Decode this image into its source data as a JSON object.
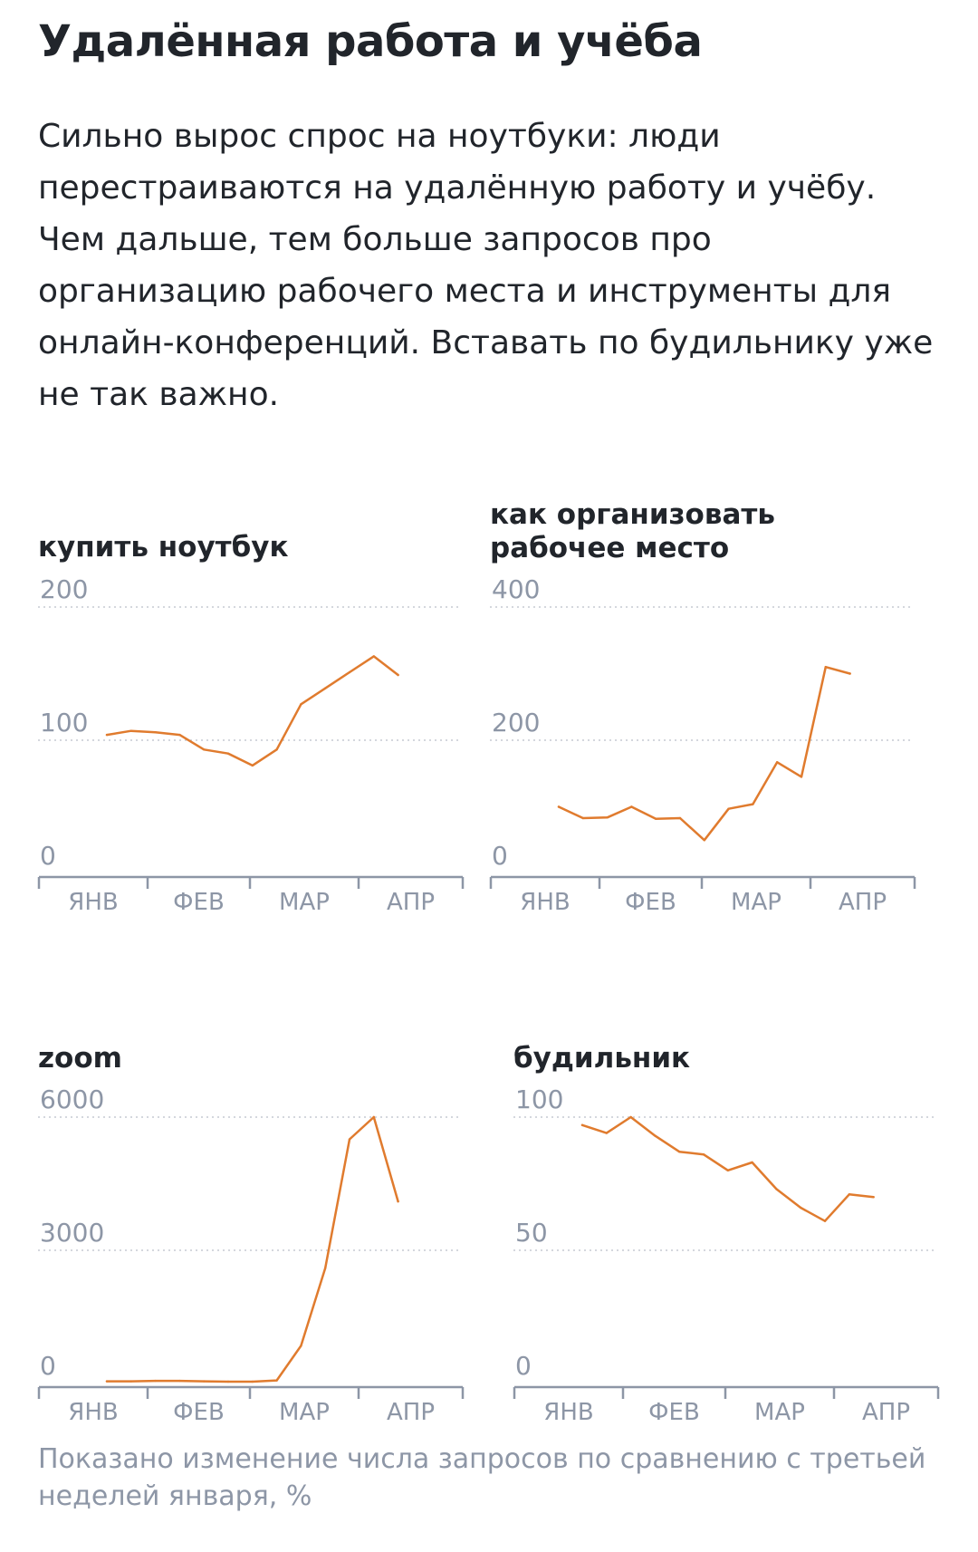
{
  "header": {
    "title": "Удалённая работа и учёба",
    "lead": "Сильно вырос спрос на ноутбуки: люди перестраиваются на удалённую работу и учёбу. Чем дальше, тем больше запросов про организацию рабочего места и инструменты для онлайн-конференций. Вставать по будильнику уже не так важно."
  },
  "footnote": "Показано изменение числа запросов по сравнению с третьей неделей января, %",
  "colors": {
    "line": "#e07b2e",
    "grid": "#c6cad2",
    "tick_text": "#8d96a6",
    "axis": "#8d96a6",
    "text": "#21252b"
  },
  "chart_data": [
    {
      "type": "line",
      "title": "купить ноутбук",
      "ylim": [
        0,
        200
      ],
      "yticks": [
        "0",
        "100",
        "200"
      ],
      "xticks": [
        "ЯНВ",
        "ФЕВ",
        "МАР",
        "АПР"
      ],
      "grid": true,
      "values": [
        104,
        107,
        106,
        104,
        93,
        90,
        81,
        93,
        127,
        139,
        151,
        163,
        149
      ]
    },
    {
      "type": "line",
      "title": "как организовать рабочее место",
      "ylim": [
        0,
        400
      ],
      "yticks": [
        "0",
        "200",
        "400"
      ],
      "xticks": [
        "ЯНВ",
        "ФЕВ",
        "МАР",
        "АПР"
      ],
      "grid": true,
      "values": [
        100,
        83,
        84,
        100,
        82,
        83,
        50,
        97,
        104,
        167,
        145,
        310,
        300
      ]
    },
    {
      "type": "line",
      "title": "zoom",
      "ylim": [
        0,
        6000
      ],
      "yticks": [
        "0",
        "3000",
        "6000"
      ],
      "xticks": [
        "ЯНВ",
        "ФЕВ",
        "МАР",
        "АПР"
      ],
      "grid": true,
      "values": [
        50,
        50,
        60,
        60,
        50,
        40,
        40,
        70,
        850,
        2600,
        5500,
        6000,
        4100
      ]
    },
    {
      "type": "line",
      "title": "будильник",
      "ylim": [
        0,
        100
      ],
      "yticks": [
        "0",
        "50",
        "100"
      ],
      "xticks": [
        "ЯНВ",
        "ФЕВ",
        "МАР",
        "АПР"
      ],
      "grid": true,
      "values": [
        97,
        94,
        100,
        93,
        87,
        86,
        80,
        83,
        73,
        66,
        61,
        71,
        70
      ]
    }
  ]
}
